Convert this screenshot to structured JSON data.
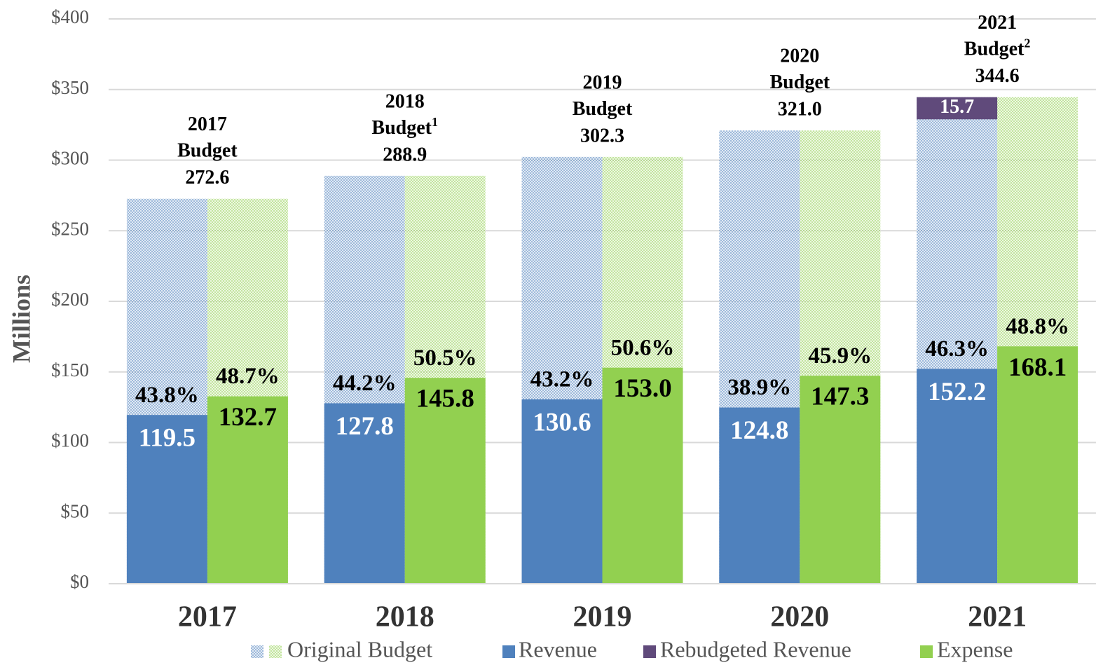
{
  "chart_data": {
    "type": "bar",
    "y_label": "Millions",
    "categories": [
      "2017",
      "2018",
      "2019",
      "2020",
      "2021"
    ],
    "ylim": [
      0,
      400
    ],
    "yticks": [
      {
        "value": 0,
        "label": "$0"
      },
      {
        "value": 50,
        "label": "$50"
      },
      {
        "value": 100,
        "label": "$100"
      },
      {
        "value": 150,
        "label": "$150"
      },
      {
        "value": 200,
        "label": "$200"
      },
      {
        "value": 250,
        "label": "$250"
      },
      {
        "value": 300,
        "label": "$300"
      },
      {
        "value": 350,
        "label": "$350"
      },
      {
        "value": 400,
        "label": "$400"
      }
    ],
    "grid": true,
    "legend": "bottom",
    "series": [
      {
        "name": "Original Budget",
        "colors": [
          "#4f81bd",
          "#92d050"
        ],
        "values": [
          272.6,
          288.9,
          302.3,
          321.0,
          344.6
        ],
        "value_labels": [
          "272.6",
          "288.9",
          "302.3",
          "321.0",
          "344.6"
        ],
        "captions": [
          "Budget",
          "Budget",
          "Budget",
          "Budget",
          "Budget"
        ],
        "notes": [
          null,
          "1",
          null,
          null,
          "2"
        ]
      },
      {
        "name": "Revenue",
        "color": "#4f81bd",
        "values": [
          119.5,
          127.8,
          130.6,
          124.8,
          152.2
        ],
        "percent": [
          43.8,
          44.2,
          43.2,
          38.9,
          46.3
        ],
        "percent_labels": [
          "43.8%",
          "44.2%",
          "43.2%",
          "38.9%",
          "46.3%"
        ]
      },
      {
        "name": "Rebudgeted Revenue",
        "color": "#604a7b",
        "values": [
          null,
          null,
          null,
          null,
          15.7
        ]
      },
      {
        "name": "Expense",
        "color": "#92d050",
        "values": [
          132.7,
          145.8,
          153.0,
          147.3,
          168.1
        ],
        "value_labels": [
          "132.7",
          "145.8",
          "153.0",
          "147.3",
          "168.1"
        ],
        "percent": [
          48.7,
          50.5,
          50.6,
          45.9,
          48.8
        ],
        "percent_labels": [
          "48.7%",
          "50.5%",
          "50.6%",
          "45.9%",
          "48.8%"
        ]
      }
    ]
  }
}
